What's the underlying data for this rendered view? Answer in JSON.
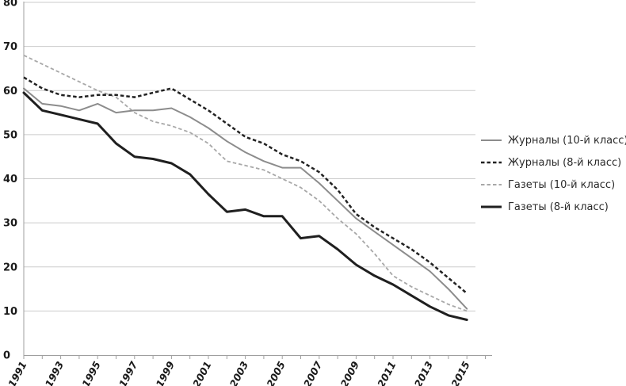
{
  "chart_data": {
    "type": "line",
    "title": "",
    "x": [
      1991,
      1992,
      1993,
      1994,
      1995,
      1996,
      1997,
      1998,
      1999,
      2000,
      2001,
      2002,
      2003,
      2004,
      2005,
      2006,
      2007,
      2008,
      2009,
      2010,
      2011,
      2012,
      2013,
      2014,
      2015
    ],
    "x_axis": {
      "tick_labels": [
        "1991",
        "1993",
        "1995",
        "1997",
        "1999",
        "2001",
        "2003",
        "2005",
        "2007",
        "2009",
        "2011",
        "2013",
        "2015"
      ],
      "label_rotation_deg": -62
    },
    "y_axis": {
      "min": 0,
      "max": 80,
      "tick_interval": 10,
      "tick_labels": [
        "0",
        "10",
        "20",
        "30",
        "40",
        "50",
        "60",
        "70",
        "80"
      ]
    },
    "grid": "horizontal",
    "legend_position": "right",
    "series": [
      {
        "name": "Журналы (10-й класс)",
        "line_style": "solid",
        "color": "#8c8c8c",
        "stroke_width": 2,
        "values": [
          60.5,
          57,
          56.5,
          55.5,
          57,
          55,
          55.5,
          55.5,
          56,
          54,
          51.5,
          48.5,
          46,
          44,
          42.5,
          42.5,
          39,
          35,
          31,
          28,
          25,
          22,
          19,
          15,
          10.5
        ]
      },
      {
        "name": "Журналы (8-й класс)",
        "line_style": "dashed",
        "color": "#222222",
        "stroke_width": 2.5,
        "values": [
          63,
          60.5,
          59,
          58.5,
          59,
          59,
          58.5,
          59.5,
          60.5,
          58,
          55.5,
          52.5,
          49.5,
          48,
          45.5,
          44,
          41.5,
          37.5,
          32,
          29,
          26.5,
          24,
          21,
          17.5,
          14
        ]
      },
      {
        "name": "Газеты (10-й класс)",
        "line_style": "dashed",
        "color": "#a8a8a8",
        "stroke_width": 1.8,
        "values": [
          68,
          66,
          64,
          62,
          60,
          58.5,
          55,
          53,
          52,
          50.5,
          48,
          44,
          43,
          42,
          40,
          38,
          35,
          31,
          27.5,
          23,
          18,
          15.5,
          13.5,
          11.5,
          10
        ]
      },
      {
        "name": "Газеты (8-й класс)",
        "line_style": "solid",
        "color": "#1f1f1f",
        "stroke_width": 3,
        "values": [
          59.5,
          55.5,
          54.5,
          53.5,
          52.5,
          48,
          45,
          44.5,
          43.5,
          41,
          36.5,
          32.5,
          33,
          31.5,
          31.5,
          26.5,
          27,
          24,
          20.5,
          18,
          16,
          13.5,
          11,
          9,
          8
        ]
      }
    ]
  },
  "colors": {
    "background": "#ffffff",
    "grid": "#cbcbcb",
    "axis": "#9f9f9f",
    "tick_label": "#1a1a1a",
    "legend_text": "#2b2b2b"
  }
}
